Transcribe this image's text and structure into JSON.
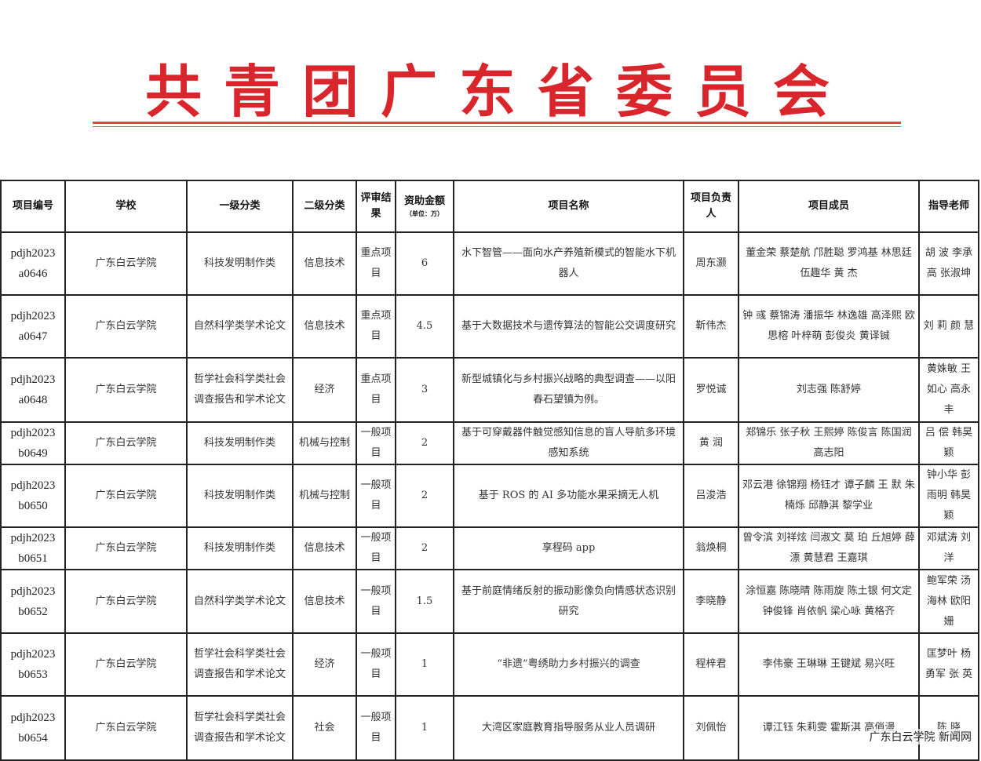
{
  "header": {
    "title": "共青团广东省委员会",
    "accent": "#d9262c"
  },
  "table": {
    "columns": [
      "项目编号",
      "学校",
      "一级分类",
      "二级分类",
      "评审结果",
      "资助金额",
      "（单位：万）",
      "项目名称",
      "项目负责人",
      "项目成员",
      "指导老师"
    ],
    "rows": [
      {
        "id": "pdjh2023 a0646",
        "school": "广东白云学院",
        "cat1": "科技发明制作类",
        "cat2": "信息技术",
        "result": "重点项目",
        "amount": "6",
        "name": "水下智管——面向水产养殖新模式的智能水下机器人",
        "leader": "周东灏",
        "members": "董金荣 蔡楚航 邝胜聪 罗鸿基 林思廷 伍趣华 黄 杰",
        "advisors": "胡 波 李承高 张淑坤"
      },
      {
        "id": "pdjh2023 a0647",
        "school": "广东白云学院",
        "cat1": "自然科学类学术论文",
        "cat2": "信息技术",
        "result": "重点项目",
        "amount": "4.5",
        "name": "基于大数据技术与遗传算法的智能公交调度研究",
        "leader": "靳伟杰",
        "members": "钟 彧 蔡锦涛 潘振华 林逸雄 高泽熙 欧思榕 叶梓萌 彭俊炎 黄译铖",
        "advisors": "刘 莉 颜 慧"
      },
      {
        "id": "pdjh2023 a0648",
        "school": "广东白云学院",
        "cat1": "哲学社会科学类社会调查报告和学术论文",
        "cat2": "经济",
        "result": "重点项目",
        "amount": "3",
        "name": "新型城镇化与乡村振兴战略的典型调查——以阳春石望镇为例。",
        "leader": "罗悦诚",
        "members": "刘志强 陈舒婷",
        "advisors": "黄姝敏 王如心 高永丰"
      },
      {
        "id": "pdjh2023 b0649",
        "school": "广东白云学院",
        "cat1": "科技发明制作类",
        "cat2": "机械与控制",
        "result": "一般项目",
        "amount": "2",
        "name": "基于可穿戴器件触觉感知信息的盲人导航多环境感知系统",
        "leader": "黄 润",
        "members": "郑锦乐 张子秋 王熙婷 陈俊言 陈国润 高志阳",
        "advisors": "吕 偿 韩昊颖"
      },
      {
        "id": "pdjh2023 b0650",
        "school": "广东白云学院",
        "cat1": "科技发明制作类",
        "cat2": "机械与控制",
        "result": "一般项目",
        "amount": "2",
        "name": "基于 ROS 的 AI 多功能水果采摘无人机",
        "leader": "吕浚浩",
        "members": "邓云港 徐锦翔 杨钰才 谭子麟 王 默 朱楠烁 邱静淇 黎学业",
        "advisors": "钟小华 彭雨明 韩昊颖"
      },
      {
        "id": "pdjh2023 b0651",
        "school": "广东白云学院",
        "cat1": "科技发明制作类",
        "cat2": "信息技术",
        "result": "一般项目",
        "amount": "2",
        "name": "享程码 app",
        "leader": "翁焕桐",
        "members": "曾令滨 刘祥炫 闫淑文 莫 珀 丘旭婷 薛 漂 黄慧君 王嘉琪",
        "advisors": "邓斌涛 刘 洋"
      },
      {
        "id": "pdjh2023 b0652",
        "school": "广东白云学院",
        "cat1": "自然科学类学术论文",
        "cat2": "信息技术",
        "result": "一般项目",
        "amount": "1.5",
        "name": "基于前庭情绪反射的振动影像负向情感状态识别研究",
        "leader": "李晓静",
        "members": "涂恒嘉 陈晓晴 陈雨旋 陈土银 何文定 钟俊锋 肖依帆 梁心咏 黄格齐",
        "advisors": "鲍军荣 汤海林 欧阳姗"
      },
      {
        "id": "pdjh2023 b0653",
        "school": "广东白云学院",
        "cat1": "哲学社会科学类社会调查报告和学术论文",
        "cat2": "经济",
        "result": "一般项目",
        "amount": "1",
        "name": "“非遗”粤绣助力乡村振兴的调查",
        "leader": "程梓君",
        "members": "李伟豪 王琳琳 王键斌 易兴旺",
        "advisors": "匡梦叶 杨勇军 张 英"
      },
      {
        "id": "pdjh2023 b0654",
        "school": "广东白云学院",
        "cat1": "哲学社会科学类社会调查报告和学术论文",
        "cat2": "社会",
        "result": "一般项目",
        "amount": "1",
        "name": "大湾区家庭教育指导服务从业人员调研",
        "leader": "刘佩怡",
        "members": "谭江钰 朱莉雯 霍斯淇 高俏漫",
        "advisors": "陈 晓"
      }
    ]
  },
  "watermark": "广东白云学院 新闻网"
}
